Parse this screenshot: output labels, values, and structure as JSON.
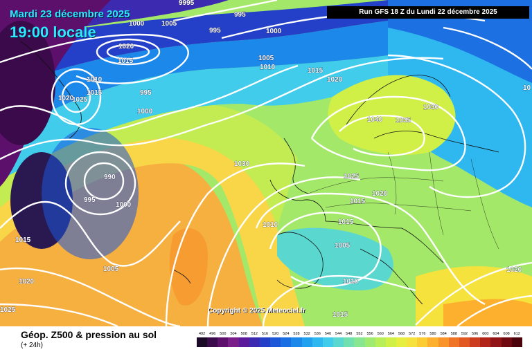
{
  "header": {
    "date": "Mardi 23 décembre 2025",
    "time": "19:00 locale",
    "run": "Run GFS 18 Z du Lundi 22 décembre 2025"
  },
  "footer": {
    "title": "Géop. Z500 & pression au sol",
    "subtitle": "(+ 24h)",
    "copyright": "Copyright © 2025 Meteociel.fr"
  },
  "legend": {
    "labels": [
      "492",
      "496",
      "500",
      "504",
      "508",
      "512",
      "516",
      "520",
      "524",
      "528",
      "532",
      "536",
      "540",
      "544",
      "548",
      "552",
      "556",
      "560",
      "564",
      "568",
      "572",
      "576",
      "580",
      "584",
      "588",
      "592",
      "596",
      "600",
      "604",
      "608",
      "612"
    ],
    "colors": [
      "#1a0a26",
      "#3a0a4a",
      "#5c0f6b",
      "#7a1f8a",
      "#5b1a9c",
      "#3c2bb0",
      "#2440c8",
      "#1c58d8",
      "#1a70e2",
      "#1c88ea",
      "#22a0f0",
      "#2fb8f0",
      "#40ccea",
      "#5ad8d0",
      "#70e0b0",
      "#88e690",
      "#a0ea70",
      "#b8ee58",
      "#d0f048",
      "#e6ee40",
      "#f6e23c",
      "#fccc34",
      "#fcb02e",
      "#f8942a",
      "#f07426",
      "#e25822",
      "#cc3c1e",
      "#b0241a",
      "#901416",
      "#6e0a10",
      "#4a040a"
    ]
  },
  "isobars": [
    {
      "text": "9995"
    },
    {
      "text": "995"
    },
    {
      "text": "1000"
    },
    {
      "text": "1005"
    },
    {
      "text": "995"
    },
    {
      "text": "1000"
    },
    {
      "text": "1020"
    },
    {
      "text": "1015"
    },
    {
      "text": "1010"
    },
    {
      "text": "1015"
    },
    {
      "text": "1020"
    },
    {
      "text": "1025"
    },
    {
      "text": "995"
    },
    {
      "text": "1000"
    },
    {
      "text": "1005"
    },
    {
      "text": "1010"
    },
    {
      "text": "1015"
    },
    {
      "text": "1020"
    },
    {
      "text": "1030"
    },
    {
      "text": "1040"
    },
    {
      "text": "1035"
    },
    {
      "text": "1030"
    },
    {
      "text": "10"
    },
    {
      "text": "990"
    },
    {
      "text": "995"
    },
    {
      "text": "1000"
    },
    {
      "text": "1025"
    },
    {
      "text": "1020"
    },
    {
      "text": "1015"
    },
    {
      "text": "1010"
    },
    {
      "text": "1005"
    },
    {
      "text": "1015"
    },
    {
      "text": "1010"
    },
    {
      "text": "1005"
    },
    {
      "text": "1015"
    },
    {
      "text": "1020"
    },
    {
      "text": "1025"
    },
    {
      "text": "1015"
    },
    {
      "text": "1020"
    }
  ]
}
